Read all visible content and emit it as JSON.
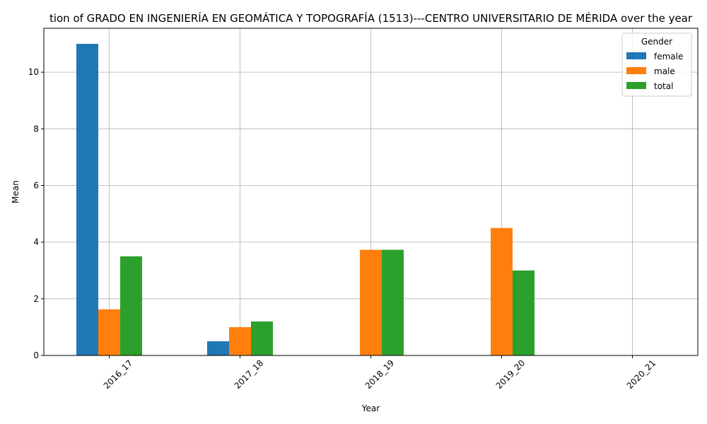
{
  "chart_data": {
    "type": "bar",
    "title": "tion of GRADO EN INGENIERÍA EN GEOMÁTICA Y TOPOGRAFÍA (1513)---CENTRO UNIVERSITARIO DE MÉRIDA over the year",
    "xlabel": "Year",
    "ylabel": "Mean",
    "categories": [
      "2016_17",
      "2017_18",
      "2018_19",
      "2019_20",
      "2020_21"
    ],
    "series": [
      {
        "name": "female",
        "color": "#1f77b4",
        "values": [
          11.0,
          0.5,
          null,
          null,
          null
        ]
      },
      {
        "name": "male",
        "color": "#ff7f0e",
        "values": [
          1.63,
          1.0,
          3.73,
          4.5,
          null
        ]
      },
      {
        "name": "total",
        "color": "#2ca02c",
        "values": [
          3.5,
          1.2,
          3.73,
          3.0,
          null
        ]
      }
    ],
    "ylim": [
      0,
      11.55
    ],
    "yticks": [
      0,
      2,
      4,
      6,
      8,
      10
    ],
    "grid": true,
    "legend": {
      "title": "Gender",
      "placement": "top-right"
    }
  }
}
